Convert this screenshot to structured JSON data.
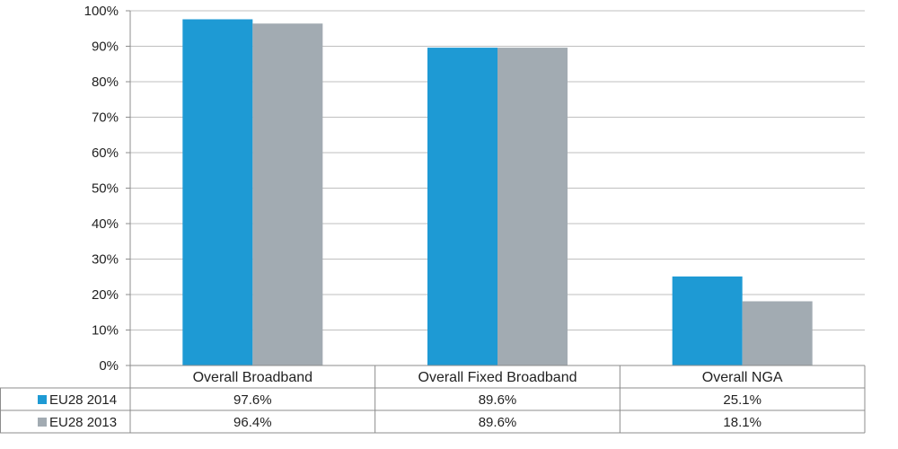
{
  "chart_data": {
    "type": "bar",
    "categories": [
      "Overall Broadband",
      "Overall Fixed Broadband",
      "Overall NGA"
    ],
    "series": [
      {
        "name": "EU28 2014",
        "values": [
          97.6,
          89.6,
          25.1
        ],
        "labels": [
          "97.6%",
          "89.6%",
          "25.1%"
        ],
        "color": "#1e9ad4"
      },
      {
        "name": "EU28 2013",
        "values": [
          96.4,
          89.6,
          18.1
        ],
        "labels": [
          "96.4%",
          "89.6%",
          "18.1%"
        ],
        "color": "#a2abb2"
      }
    ],
    "y_ticks": [
      "0%",
      "10%",
      "20%",
      "30%",
      "40%",
      "50%",
      "60%",
      "70%",
      "80%",
      "90%",
      "100%"
    ],
    "ylim": [
      0,
      100
    ],
    "grid": true,
    "legend": "data-table",
    "colors": {
      "gridline": "#bfbfbf",
      "axis": "#8c8c8c"
    }
  }
}
